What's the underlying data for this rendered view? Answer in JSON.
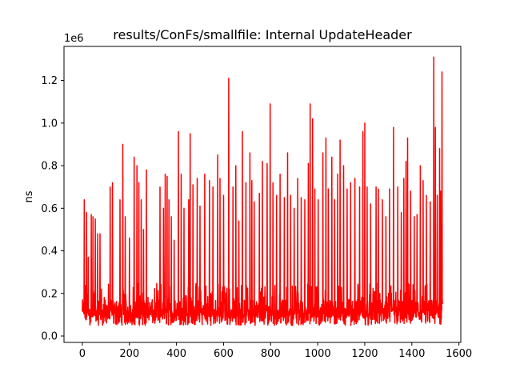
{
  "chart_data": {
    "type": "line",
    "title": "results/ConFs/smallfile: Internal UpdateHeader",
    "xlabel": "",
    "ylabel": "ns",
    "y_offset_label": "1e6",
    "xlim": [
      -78,
      1608
    ],
    "ylim": [
      -0.03,
      1.36
    ],
    "x_ticks": [
      0,
      200,
      400,
      600,
      800,
      1000,
      1200,
      1400,
      1600
    ],
    "x_tick_labels": [
      "0",
      "200",
      "400",
      "600",
      "800",
      "1000",
      "1200",
      "1400",
      "1600"
    ],
    "y_ticks": [
      0.0,
      0.2,
      0.4,
      0.6,
      0.8,
      1.0,
      1.2
    ],
    "y_tick_labels": [
      "0.0",
      "0.2",
      "0.4",
      "0.6",
      "0.8",
      "1.0",
      "1.2"
    ],
    "grid": false,
    "series": [
      {
        "color": "#ff0000",
        "x_start": 0,
        "x_end": 1530,
        "baseline_band": [
          0.03,
          0.22
        ],
        "peaks": [
          [
            8,
            0.64
          ],
          [
            18,
            0.58
          ],
          [
            25,
            0.37
          ],
          [
            38,
            0.57
          ],
          [
            45,
            0.56
          ],
          [
            55,
            0.55
          ],
          [
            65,
            0.48
          ],
          [
            75,
            0.48
          ],
          [
            118,
            0.7
          ],
          [
            128,
            0.72
          ],
          [
            160,
            0.64
          ],
          [
            172,
            0.9
          ],
          [
            182,
            0.56
          ],
          [
            200,
            0.46
          ],
          [
            220,
            0.84
          ],
          [
            232,
            0.8
          ],
          [
            240,
            0.72
          ],
          [
            250,
            0.64
          ],
          [
            260,
            0.5
          ],
          [
            272,
            0.78
          ],
          [
            330,
            0.7
          ],
          [
            345,
            0.6
          ],
          [
            352,
            0.76
          ],
          [
            360,
            0.75
          ],
          [
            368,
            0.64
          ],
          [
            378,
            0.56
          ],
          [
            390,
            0.45
          ],
          [
            408,
            0.96
          ],
          [
            420,
            0.76
          ],
          [
            432,
            0.6
          ],
          [
            452,
            0.64
          ],
          [
            458,
            0.95
          ],
          [
            470,
            0.71
          ],
          [
            488,
            0.74
          ],
          [
            500,
            0.61
          ],
          [
            520,
            0.76
          ],
          [
            540,
            0.73
          ],
          [
            555,
            0.7
          ],
          [
            575,
            0.85
          ],
          [
            585,
            0.74
          ],
          [
            600,
            0.66
          ],
          [
            622,
            1.21
          ],
          [
            640,
            0.7
          ],
          [
            652,
            0.8
          ],
          [
            665,
            0.54
          ],
          [
            680,
            0.96
          ],
          [
            695,
            0.72
          ],
          [
            712,
            0.86
          ],
          [
            720,
            0.73
          ],
          [
            730,
            0.63
          ],
          [
            752,
            0.67
          ],
          [
            765,
            0.82
          ],
          [
            785,
            0.81
          ],
          [
            798,
            1.09
          ],
          [
            810,
            0.72
          ],
          [
            825,
            0.66
          ],
          [
            840,
            0.76
          ],
          [
            858,
            0.65
          ],
          [
            872,
            0.86
          ],
          [
            885,
            0.66
          ],
          [
            900,
            0.6
          ],
          [
            915,
            0.74
          ],
          [
            930,
            0.65
          ],
          [
            945,
            0.64
          ],
          [
            960,
            0.81
          ],
          [
            968,
            1.09
          ],
          [
            978,
            1.02
          ],
          [
            988,
            0.69
          ],
          [
            1002,
            0.64
          ],
          [
            1022,
            0.86
          ],
          [
            1035,
            0.93
          ],
          [
            1045,
            0.69
          ],
          [
            1060,
            0.84
          ],
          [
            1072,
            0.64
          ],
          [
            1085,
            0.76
          ],
          [
            1095,
            0.92
          ],
          [
            1110,
            0.8
          ],
          [
            1125,
            0.69
          ],
          [
            1140,
            0.72
          ],
          [
            1158,
            0.74
          ],
          [
            1178,
            0.7
          ],
          [
            1192,
            0.96
          ],
          [
            1200,
            1.0
          ],
          [
            1210,
            0.7
          ],
          [
            1225,
            0.62
          ],
          [
            1248,
            0.7
          ],
          [
            1258,
            0.69
          ],
          [
            1275,
            0.64
          ],
          [
            1290,
            0.56
          ],
          [
            1305,
            0.69
          ],
          [
            1322,
            0.98
          ],
          [
            1340,
            0.7
          ],
          [
            1355,
            0.58
          ],
          [
            1366,
            0.74
          ],
          [
            1375,
            0.82
          ],
          [
            1382,
            0.93
          ],
          [
            1395,
            0.68
          ],
          [
            1410,
            0.56
          ],
          [
            1422,
            0.57
          ],
          [
            1436,
            0.8
          ],
          [
            1448,
            0.73
          ],
          [
            1462,
            0.66
          ],
          [
            1478,
            0.63
          ],
          [
            1493,
            1.31
          ],
          [
            1500,
            0.98
          ],
          [
            1508,
            0.66
          ],
          [
            1518,
            0.88
          ],
          [
            1522,
            0.68
          ],
          [
            1528,
            1.24
          ]
        ]
      }
    ]
  }
}
